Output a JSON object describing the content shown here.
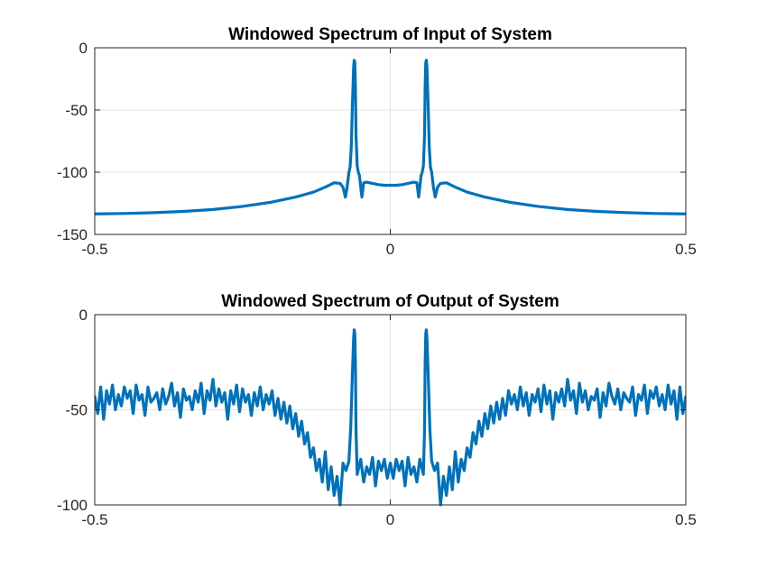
{
  "chart_data": [
    {
      "type": "line",
      "title": "Windowed Spectrum of Input of System",
      "xlabel": "",
      "ylabel": "",
      "xlim": [
        -0.5,
        0.5
      ],
      "ylim": [
        -150,
        0
      ],
      "x_ticks": [
        -0.5,
        0,
        0.5
      ],
      "x_tick_labels": [
        "-0.5",
        "0",
        "0.5"
      ],
      "y_ticks": [
        0,
        -50,
        -100,
        -150
      ],
      "y_tick_labels": [
        "0",
        "-50",
        "-100",
        "-150"
      ],
      "grid": true,
      "color": "#0072BD",
      "series": [
        {
          "x": [
            -0.5,
            -0.45,
            -0.4,
            -0.35,
            -0.3,
            -0.25,
            -0.2,
            -0.16,
            -0.13,
            -0.11,
            -0.095,
            -0.085,
            -0.08,
            -0.076,
            -0.073,
            -0.07,
            -0.068,
            -0.066,
            -0.064,
            -0.062,
            -0.061,
            -0.06,
            -0.059,
            -0.058,
            -0.056,
            -0.054,
            -0.052,
            -0.05,
            -0.048,
            -0.045,
            -0.04,
            -0.03,
            -0.02,
            -0.01,
            0,
            0.01,
            0.02,
            0.03,
            0.04,
            0.045,
            0.048,
            0.05,
            0.052,
            0.054,
            0.056,
            0.058,
            0.059,
            0.06,
            0.061,
            0.062,
            0.064,
            0.066,
            0.068,
            0.07,
            0.073,
            0.076,
            0.08,
            0.085,
            0.095,
            0.11,
            0.13,
            0.16,
            0.2,
            0.25,
            0.3,
            0.35,
            0.4,
            0.45,
            0.5
          ],
          "y": [
            -133.5,
            -133.2,
            -132.5,
            -131.5,
            -130,
            -127.5,
            -124,
            -120,
            -116,
            -112,
            -108.5,
            -109,
            -112,
            -120,
            -112,
            -100,
            -96,
            -80,
            -45,
            -15,
            -10,
            -12,
            -30,
            -70,
            -95,
            -100,
            -103,
            -112,
            -120,
            -108.5,
            -108,
            -109,
            -110,
            -110.5,
            -110.5,
            -110.5,
            -110,
            -109,
            -108,
            -108.5,
            -120,
            -112,
            -103,
            -100,
            -95,
            -70,
            -30,
            -12,
            -10,
            -15,
            -45,
            -80,
            -96,
            -100,
            -112,
            -120,
            -112,
            -109,
            -108.5,
            -112,
            -116,
            -120,
            -124,
            -127.5,
            -130,
            -131.5,
            -132.5,
            -133.2,
            -133.5
          ]
        }
      ]
    },
    {
      "type": "line",
      "title": "Windowed Spectrum of Output of System",
      "xlabel": "",
      "ylabel": "",
      "xlim": [
        -0.5,
        0.5
      ],
      "ylim": [
        -100,
        0
      ],
      "x_ticks": [
        -0.5,
        0,
        0.5
      ],
      "x_tick_labels": [
        "-0.5",
        "0",
        "0.5"
      ],
      "y_ticks": [
        0,
        -50,
        -100
      ],
      "y_tick_labels": [
        "0",
        "-50",
        "-100"
      ],
      "grid": true,
      "color": "#0072BD",
      "series": [
        {
          "x": [
            -0.5,
            -0.495,
            -0.49,
            -0.485,
            -0.48,
            -0.475,
            -0.47,
            -0.465,
            -0.46,
            -0.455,
            -0.45,
            -0.445,
            -0.44,
            -0.435,
            -0.43,
            -0.425,
            -0.42,
            -0.415,
            -0.41,
            -0.405,
            -0.4,
            -0.395,
            -0.39,
            -0.385,
            -0.38,
            -0.375,
            -0.37,
            -0.365,
            -0.36,
            -0.355,
            -0.35,
            -0.345,
            -0.34,
            -0.335,
            -0.33,
            -0.325,
            -0.32,
            -0.315,
            -0.31,
            -0.305,
            -0.3,
            -0.295,
            -0.29,
            -0.285,
            -0.28,
            -0.275,
            -0.27,
            -0.265,
            -0.26,
            -0.255,
            -0.25,
            -0.245,
            -0.24,
            -0.235,
            -0.23,
            -0.225,
            -0.22,
            -0.215,
            -0.21,
            -0.205,
            -0.2,
            -0.195,
            -0.19,
            -0.185,
            -0.18,
            -0.175,
            -0.17,
            -0.165,
            -0.16,
            -0.155,
            -0.15,
            -0.145,
            -0.14,
            -0.135,
            -0.13,
            -0.125,
            -0.12,
            -0.115,
            -0.11,
            -0.105,
            -0.1,
            -0.095,
            -0.09,
            -0.085,
            -0.08,
            -0.075,
            -0.07,
            -0.067,
            -0.064,
            -0.062,
            -0.061,
            -0.06,
            -0.059,
            -0.058,
            -0.056,
            -0.053,
            -0.05,
            -0.045,
            -0.04,
            -0.035,
            -0.03,
            -0.025,
            -0.02,
            -0.015,
            -0.01,
            -0.005,
            0,
            0.005,
            0.01,
            0.015,
            0.02,
            0.025,
            0.03,
            0.035,
            0.04,
            0.045,
            0.05,
            0.053,
            0.056,
            0.058,
            0.059,
            0.06,
            0.061,
            0.062,
            0.064,
            0.067,
            0.07,
            0.075,
            0.08,
            0.085,
            0.09,
            0.095,
            0.1,
            0.105,
            0.11,
            0.115,
            0.12,
            0.125,
            0.13,
            0.135,
            0.14,
            0.145,
            0.15,
            0.155,
            0.16,
            0.165,
            0.17,
            0.175,
            0.18,
            0.185,
            0.19,
            0.195,
            0.2,
            0.205,
            0.21,
            0.215,
            0.22,
            0.225,
            0.23,
            0.235,
            0.24,
            0.245,
            0.25,
            0.255,
            0.26,
            0.265,
            0.27,
            0.275,
            0.28,
            0.285,
            0.29,
            0.295,
            0.3,
            0.305,
            0.31,
            0.315,
            0.32,
            0.325,
            0.33,
            0.335,
            0.34,
            0.345,
            0.35,
            0.355,
            0.36,
            0.365,
            0.37,
            0.375,
            0.38,
            0.385,
            0.39,
            0.395,
            0.4,
            0.405,
            0.41,
            0.415,
            0.42,
            0.425,
            0.43,
            0.435,
            0.44,
            0.445,
            0.45,
            0.455,
            0.46,
            0.465,
            0.47,
            0.475,
            0.48,
            0.485,
            0.49,
            0.495,
            0.5
          ],
          "y": [
            -43,
            -52,
            -38,
            -55,
            -40,
            -47,
            -37,
            -50,
            -42,
            -48,
            -38,
            -44,
            -40,
            -52,
            -37,
            -45,
            -42,
            -53,
            -38,
            -46,
            -44,
            -41,
            -50,
            -39,
            -47,
            -43,
            -36,
            -48,
            -41,
            -54,
            -39,
            -45,
            -43,
            -50,
            -40,
            -46,
            -36,
            -52,
            -40,
            -45,
            -34,
            -48,
            -39,
            -46,
            -41,
            -55,
            -40,
            -47,
            -37,
            -51,
            -39,
            -46,
            -42,
            -53,
            -41,
            -48,
            -38,
            -50,
            -42,
            -47,
            -40,
            -53,
            -44,
            -55,
            -46,
            -57,
            -48,
            -60,
            -52,
            -64,
            -56,
            -68,
            -62,
            -75,
            -70,
            -82,
            -76,
            -88,
            -72,
            -92,
            -80,
            -95,
            -85,
            -100,
            -78,
            -82,
            -77,
            -60,
            -30,
            -12,
            -8,
            -10,
            -25,
            -60,
            -84,
            -80,
            -76,
            -88,
            -80,
            -84,
            -75,
            -90,
            -77,
            -82,
            -76,
            -86,
            -78,
            -86,
            -76,
            -82,
            -77,
            -90,
            -75,
            -84,
            -80,
            -88,
            -76,
            -80,
            -84,
            -60,
            -25,
            -10,
            -8,
            -12,
            -30,
            -60,
            -77,
            -82,
            -78,
            -100,
            -85,
            -95,
            -80,
            -92,
            -72,
            -88,
            -76,
            -82,
            -70,
            -75,
            -62,
            -68,
            -56,
            -64,
            -52,
            -60,
            -48,
            -57,
            -46,
            -55,
            -44,
            -53,
            -40,
            -47,
            -42,
            -50,
            -38,
            -48,
            -41,
            -53,
            -42,
            -46,
            -39,
            -51,
            -37,
            -47,
            -40,
            -55,
            -41,
            -46,
            -39,
            -48,
            -34,
            -45,
            -40,
            -52,
            -36,
            -46,
            -40,
            -50,
            -43,
            -45,
            -39,
            -54,
            -41,
            -48,
            -36,
            -43,
            -47,
            -39,
            -50,
            -41,
            -44,
            -46,
            -38,
            -53,
            -42,
            -45,
            -37,
            -52,
            -40,
            -44,
            -38,
            -48,
            -42,
            -50,
            -37,
            -47,
            -40,
            -55,
            -38,
            -52,
            -43
          ]
        }
      ]
    }
  ]
}
